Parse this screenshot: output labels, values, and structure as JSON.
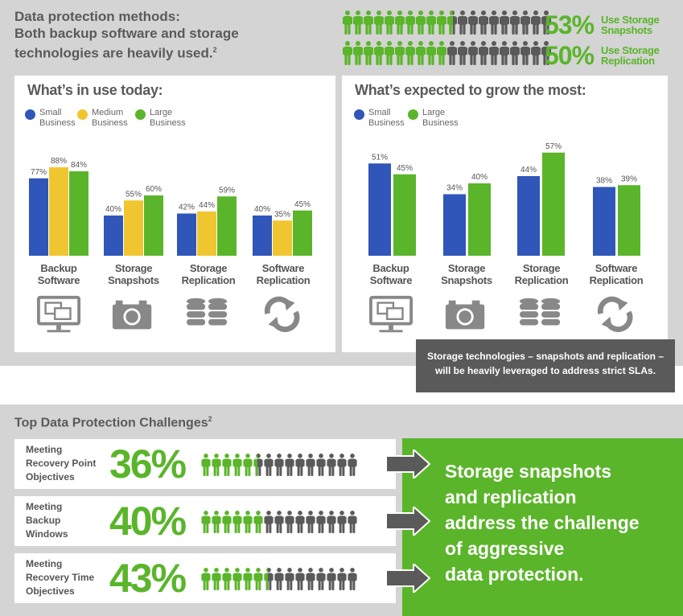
{
  "colors": {
    "small": "#2f56b8",
    "medium": "#f0c630",
    "large": "#5ab52a",
    "dark": "#5a5a5a",
    "icon": "#888888"
  },
  "header": {
    "line1": "Data protection methods:",
    "line2": "Both backup software and storage",
    "line3": "technologies are heavily used.",
    "sup": "2"
  },
  "stats": [
    {
      "pct": "53%",
      "label1": "Use Storage",
      "label2": "Snapshots",
      "fraction": 0.53
    },
    {
      "pct": "50%",
      "label1": "Use Storage",
      "label2": "Replication",
      "fraction": 0.5
    }
  ],
  "panels": {
    "today": {
      "title": "What’s in use today:"
    },
    "grow": {
      "title": "What’s expected to grow the most:"
    }
  },
  "legend_today": [
    {
      "line1": "Small",
      "line2": "Business"
    },
    {
      "line1": "Medium",
      "line2": "Business"
    },
    {
      "line1": "Large",
      "line2": "Business"
    }
  ],
  "legend_grow": [
    {
      "line1": "Small",
      "line2": "Business"
    },
    {
      "line1": "Large",
      "line2": "Business"
    }
  ],
  "chart_data": [
    {
      "type": "bar",
      "title": "What’s in use today:",
      "categories": [
        "Backup Software",
        "Storage Snapshots",
        "Storage Replication",
        "Software Replication"
      ],
      "category_lines": [
        [
          "Backup",
          "Software"
        ],
        [
          "Storage",
          "Snapshots"
        ],
        [
          "Storage",
          "Replication"
        ],
        [
          "Software",
          "Replication"
        ]
      ],
      "series": [
        {
          "name": "Small Business",
          "values": [
            77,
            40,
            42,
            40
          ],
          "labels": [
            "77%",
            "40%",
            "42%",
            "40%"
          ]
        },
        {
          "name": "Medium Business",
          "values": [
            88,
            55,
            44,
            35
          ],
          "labels": [
            "88%",
            "55%",
            "44%",
            "35%"
          ]
        },
        {
          "name": "Large Business",
          "values": [
            84,
            60,
            59,
            45
          ],
          "labels": [
            "84%",
            "60%",
            "59%",
            "45%"
          ]
        }
      ],
      "ylim": [
        0,
        100
      ],
      "legend": "top-left"
    },
    {
      "type": "bar",
      "title": "What’s expected to grow the most:",
      "categories": [
        "Backup Software",
        "Storage Snapshots",
        "Storage Replication",
        "Software Replication"
      ],
      "category_lines": [
        [
          "Backup",
          "Software"
        ],
        [
          "Storage",
          "Snapshots"
        ],
        [
          "Storage",
          "Replication"
        ],
        [
          "Software",
          "Replication"
        ]
      ],
      "series": [
        {
          "name": "Small Business",
          "values": [
            51,
            34,
            44,
            38
          ],
          "labels": [
            "51%",
            "34%",
            "44%",
            "38%"
          ]
        },
        {
          "name": "Large Business",
          "values": [
            45,
            40,
            57,
            39
          ],
          "labels": [
            "45%",
            "40%",
            "57%",
            "39%"
          ]
        }
      ],
      "ylim": [
        0,
        100
      ],
      "legend": "top-left"
    }
  ],
  "icons": [
    "monitor-icon",
    "camera-icon",
    "database-icon",
    "sync-icon"
  ],
  "callout": {
    "line1": "Storage technologies – snapshots and replication –",
    "line2": "will be heavily leveraged to address strict SLAs."
  },
  "challenges": {
    "title": "Top Data Protection Challenges",
    "sup": "2",
    "rows": [
      {
        "lines": [
          "Meeting",
          "Recovery Point",
          "Objectives"
        ],
        "pct": "36%",
        "fraction": 0.36
      },
      {
        "lines": [
          "Meeting",
          "Backup",
          "Windows"
        ],
        "pct": "40%",
        "fraction": 0.4
      },
      {
        "lines": [
          "Meeting",
          "Recovery Time",
          "Objectives"
        ],
        "pct": "43%",
        "fraction": 0.43
      }
    ]
  },
  "conclusion": {
    "lines": [
      "Storage snapshots",
      "and replication",
      "address the challenge",
      "of aggressive",
      "data protection."
    ]
  }
}
